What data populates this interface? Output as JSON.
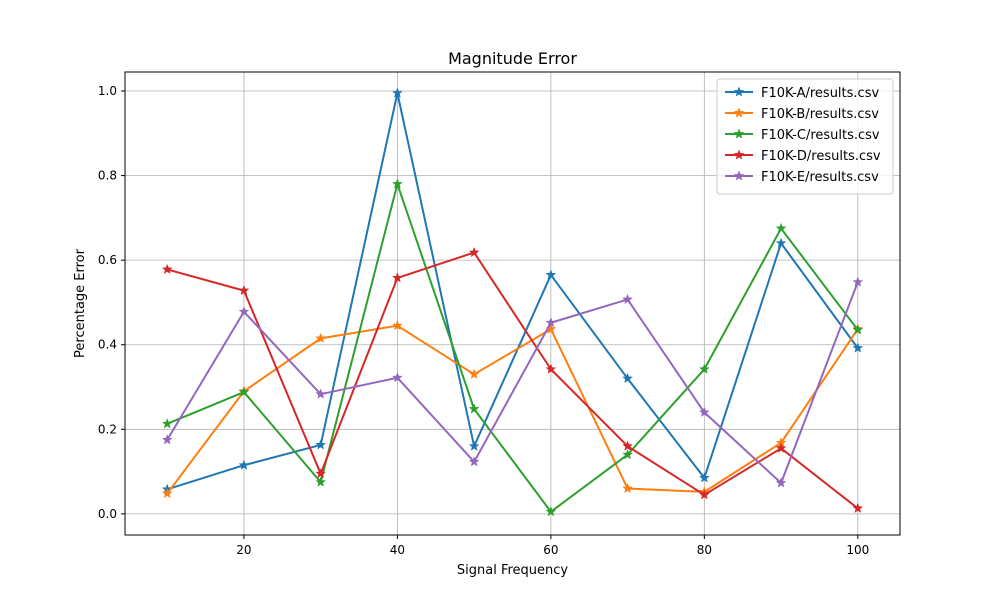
{
  "chart_data": {
    "type": "line",
    "title": "Magnitude Error",
    "xlabel": "Signal Frequency",
    "ylabel": "Percentage Error",
    "x": [
      10,
      20,
      30,
      40,
      50,
      60,
      70,
      80,
      90,
      100
    ],
    "xlim": [
      4.5,
      105.5
    ],
    "ylim": [
      -0.05,
      1.045
    ],
    "xticks": [
      20,
      40,
      60,
      80,
      100
    ],
    "yticks": [
      0.0,
      0.2,
      0.4,
      0.6,
      0.8,
      1.0
    ],
    "xtick_labels": [
      "20",
      "40",
      "60",
      "80",
      "100"
    ],
    "ytick_labels": [
      "0.0",
      "0.2",
      "0.4",
      "0.6",
      "0.8",
      "1.0"
    ],
    "grid": true,
    "legend_position": "top-right",
    "marker": "star",
    "series": [
      {
        "name": "F10K-A/results.csv",
        "color": "#1f77b4",
        "values": [
          0.058,
          0.115,
          0.163,
          0.995,
          0.16,
          0.565,
          0.32,
          0.085,
          0.64,
          0.392
        ]
      },
      {
        "name": "F10K-B/results.csv",
        "color": "#ff7f0e",
        "values": [
          0.048,
          0.29,
          0.415,
          0.445,
          0.33,
          0.437,
          0.06,
          0.052,
          0.168,
          0.437
        ]
      },
      {
        "name": "F10K-C/results.csv",
        "color": "#2ca02c",
        "values": [
          0.213,
          0.288,
          0.075,
          0.78,
          0.248,
          0.005,
          0.14,
          0.342,
          0.675,
          0.435
        ]
      },
      {
        "name": "F10K-D/results.csv",
        "color": "#d62728",
        "values": [
          0.578,
          0.528,
          0.095,
          0.558,
          0.618,
          0.342,
          0.16,
          0.045,
          0.155,
          0.013
        ]
      },
      {
        "name": "F10K-E/results.csv",
        "color": "#9467bd",
        "values": [
          0.175,
          0.478,
          0.283,
          0.322,
          0.123,
          0.452,
          0.507,
          0.24,
          0.073,
          0.548
        ]
      }
    ]
  }
}
